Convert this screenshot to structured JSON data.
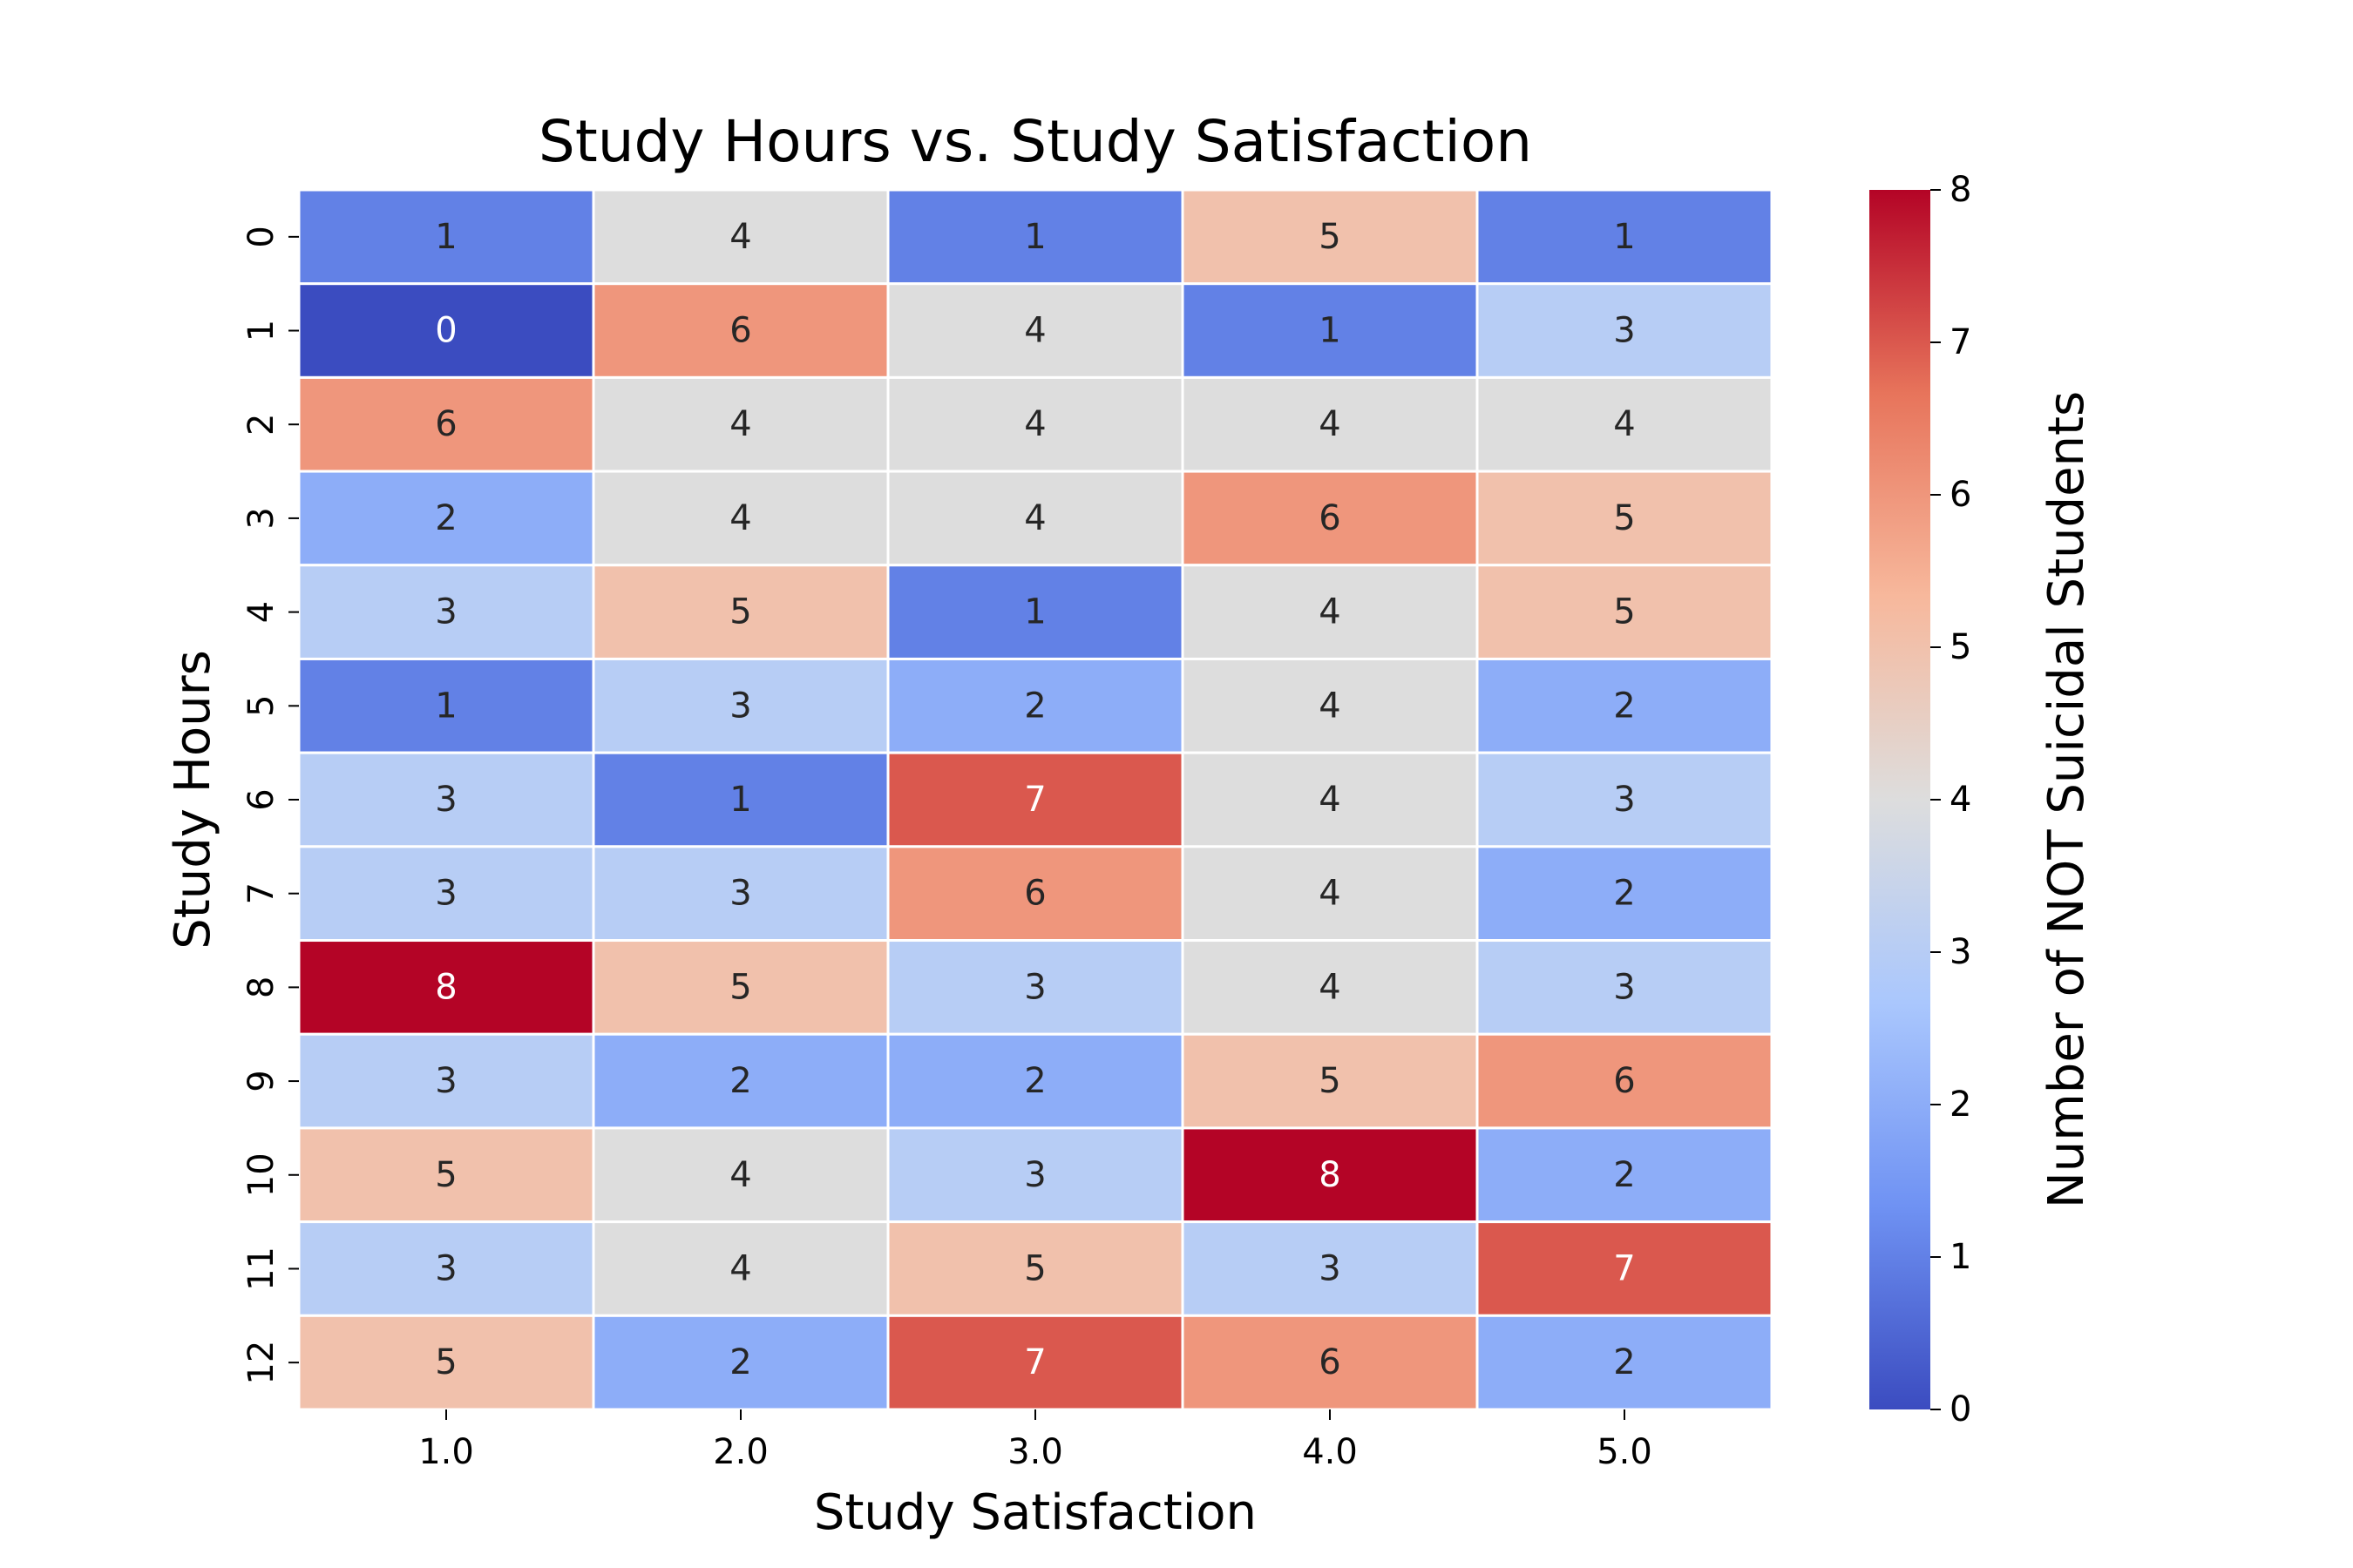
{
  "chart_data": {
    "type": "heatmap",
    "title": "Study Hours vs. Study Satisfaction",
    "xlabel": "Study Satisfaction",
    "ylabel": "Study Hours",
    "x_categories": [
      "1.0",
      "2.0",
      "3.0",
      "4.0",
      "5.0"
    ],
    "y_categories": [
      "0",
      "1",
      "2",
      "3",
      "4",
      "5",
      "6",
      "7",
      "8",
      "9",
      "10",
      "11",
      "12"
    ],
    "values": [
      [
        1,
        4,
        1,
        5,
        1
      ],
      [
        0,
        6,
        4,
        1,
        3
      ],
      [
        6,
        4,
        4,
        4,
        4
      ],
      [
        2,
        4,
        4,
        6,
        5
      ],
      [
        3,
        5,
        1,
        4,
        5
      ],
      [
        1,
        3,
        2,
        4,
        2
      ],
      [
        3,
        1,
        7,
        4,
        3
      ],
      [
        3,
        3,
        6,
        4,
        2
      ],
      [
        8,
        5,
        3,
        4,
        3
      ],
      [
        3,
        2,
        2,
        5,
        6
      ],
      [
        5,
        4,
        3,
        8,
        2
      ],
      [
        3,
        4,
        5,
        3,
        7
      ],
      [
        5,
        2,
        7,
        6,
        2
      ]
    ],
    "colorbar": {
      "label": "Number of NOT Suicidal Students",
      "min": 0,
      "max": 8,
      "ticks": [
        "0",
        "1",
        "2",
        "3",
        "4",
        "5",
        "6",
        "7",
        "8"
      ],
      "colormap": "coolwarm",
      "stops": [
        "#3b4cc0",
        "#6f92f3",
        "#aac7fd",
        "#dddddd",
        "#f7b89c",
        "#e7745b",
        "#b40426"
      ]
    },
    "grid": false,
    "legend": "colorbar-right",
    "annotated": true
  }
}
